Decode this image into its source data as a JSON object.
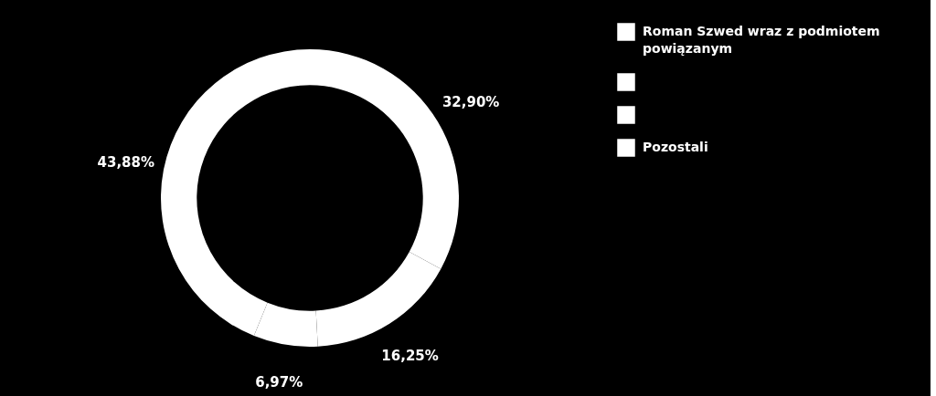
{
  "chart_data": {
    "type": "donut",
    "categories": [
      "Roman Szwed wraz z podmiotem powiązanym",
      null,
      null,
      "Pozostali"
    ],
    "values": [
      32.9,
      16.25,
      6.97,
      43.88
    ],
    "colors": [
      "#ffffff",
      "#ffffff",
      "#ffffff",
      "#ffffff"
    ],
    "value_labels": [
      "32,90%",
      "16,25%",
      "6,97%",
      "43,88%"
    ],
    "legend": "right"
  }
}
